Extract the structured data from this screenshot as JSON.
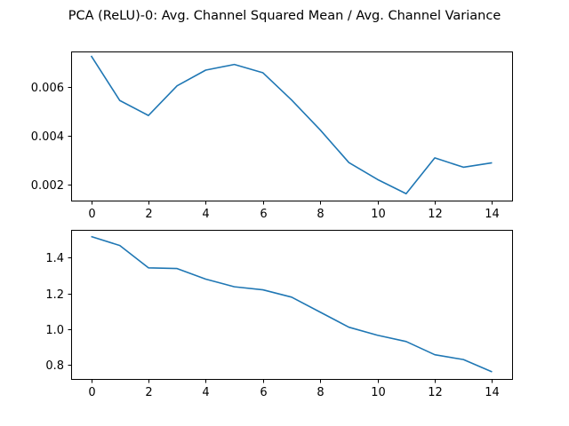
{
  "figure": {
    "title": "PCA (ReLU)-0: Avg. Channel Squared Mean / Avg. Channel Variance"
  },
  "chart_data": [
    {
      "type": "line",
      "title": "",
      "xlabel": "",
      "ylabel": "",
      "x": [
        0,
        1,
        2,
        3,
        4,
        5,
        6,
        7,
        8,
        9,
        10,
        11,
        12,
        13,
        14
      ],
      "xlim": [
        -0.7,
        14.7
      ],
      "ylim": [
        0.00135,
        0.00743
      ],
      "xticks": [
        0,
        2,
        4,
        6,
        8,
        10,
        12,
        14
      ],
      "yticks": [
        0.002,
        0.004,
        0.006
      ],
      "ytick_labels": [
        "0.002",
        "0.004",
        "0.006"
      ],
      "grid": false,
      "color": "#1f77b4",
      "series": [
        {
          "values": [
            0.00725,
            0.00543,
            0.00482,
            0.00603,
            0.00667,
            0.0069,
            0.00656,
            0.00545,
            0.00423,
            0.0029,
            0.00221,
            0.00163,
            0.00309,
            0.00271,
            0.00289
          ]
        }
      ]
    },
    {
      "type": "line",
      "title": "",
      "xlabel": "",
      "ylabel": "",
      "x": [
        0,
        1,
        2,
        3,
        4,
        5,
        6,
        7,
        8,
        9,
        10,
        11,
        12,
        13,
        14
      ],
      "xlim": [
        -0.7,
        14.7
      ],
      "ylim": [
        0.7225,
        1.5563
      ],
      "xticks": [
        0,
        2,
        4,
        6,
        8,
        10,
        12,
        14
      ],
      "yticks": [
        0.8,
        1.0,
        1.2,
        1.4
      ],
      "ytick_labels": [
        "0.8",
        "1.0",
        "1.2",
        "1.4"
      ],
      "grid": false,
      "color": "#1f77b4",
      "series": [
        {
          "values": [
            1.519,
            1.469,
            1.344,
            1.34,
            1.281,
            1.238,
            1.221,
            1.18,
            1.096,
            1.012,
            0.967,
            0.932,
            0.858,
            0.831,
            0.762
          ]
        }
      ]
    }
  ]
}
